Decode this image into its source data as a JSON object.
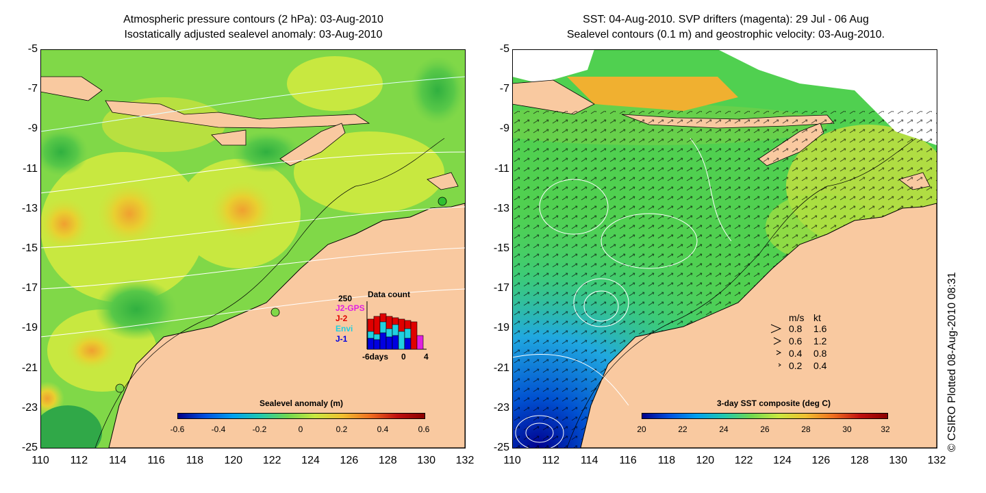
{
  "left_panel": {
    "title_line1": "Atmospheric pressure contours (2 hPa): 03-Aug-2010",
    "title_line2": "Isostatically adjusted sealevel anomaly: 03-Aug-2010",
    "colorbar": {
      "title": "Sealevel anomaly (m)",
      "labels": [
        "-0.6",
        "-0.4",
        "-0.2",
        "0",
        "0.2",
        "0.4",
        "0.6"
      ]
    },
    "inset": {
      "max_label": "250",
      "title": "Data count",
      "x_label_left": "-6days",
      "x_label_mid": "0",
      "x_label_right": "4",
      "missions": [
        {
          "name": "J2-GPS",
          "color": "#e020e0"
        },
        {
          "name": "J-2",
          "color": "#e00000"
        },
        {
          "name": "Envi",
          "color": "#20d0e0"
        },
        {
          "name": "J-1",
          "color": "#0000e0"
        }
      ]
    }
  },
  "right_panel": {
    "title_line1": "SST: 04-Aug-2010. SVP drifters (magenta): 29 Jul - 06 Aug",
    "title_line2": "Sealevel contours (0.1 m) and geostrophic velocity: 03-Aug-2010.",
    "colorbar": {
      "title": "3-day SST composite (deg C)",
      "labels": [
        "20",
        "22",
        "24",
        "26",
        "28",
        "30",
        "32"
      ]
    },
    "velocity_legend": {
      "header_ms": "m/s",
      "header_kt": "kt",
      "rows": [
        {
          "ms": "0.8",
          "kt": "1.6"
        },
        {
          "ms": "0.6",
          "kt": "1.2"
        },
        {
          "ms": "0.4",
          "kt": "0.8"
        },
        {
          "ms": "0.2",
          "kt": "0.4"
        }
      ]
    }
  },
  "axes": {
    "y_ticks": [
      "-5",
      "-7",
      "-9",
      "-11",
      "-13",
      "-15",
      "-17",
      "-19",
      "-21",
      "-23",
      "-25"
    ],
    "x_ticks": [
      "110",
      "112",
      "114",
      "116",
      "118",
      "120",
      "122",
      "124",
      "126",
      "128",
      "130",
      "132"
    ]
  },
  "credit": "© CSIRO Plotted 08-Aug-2010 08:31",
  "colors": {
    "land": "#f9c9a0",
    "sea_green": "#7cd84a",
    "sea_yellow": "#d8e840",
    "sea_orange": "#f0b030",
    "sst_blue": "#2080e0"
  }
}
